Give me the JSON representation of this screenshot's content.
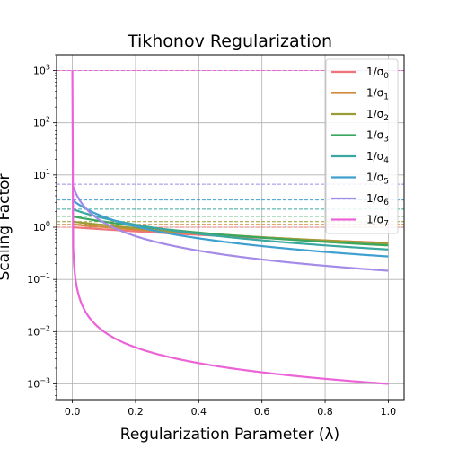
{
  "chart_data": {
    "type": "line",
    "title": "Tikhonov Regularization",
    "xlabel": "Regularization Parameter (λ)",
    "ylabel": "Scaling Factor",
    "xlim": [
      -0.05,
      1.05
    ],
    "ylim": [
      0.0005,
      2000
    ],
    "yscale": "log",
    "grid": true,
    "legend_position": "top-right",
    "x_ticks": [
      0.0,
      0.2,
      0.4,
      0.6,
      0.8,
      1.0
    ],
    "x_tick_labels": [
      "0.0",
      "0.2",
      "0.4",
      "0.6",
      "0.8",
      "1.0"
    ],
    "y_ticks": [
      0.001,
      0.01,
      0.1,
      1,
      10,
      100,
      1000
    ],
    "y_tick_labels": [
      {
        "base": "10",
        "exp": "−3"
      },
      {
        "base": "10",
        "exp": "−2"
      },
      {
        "base": "10",
        "exp": "−1"
      },
      {
        "base": "10",
        "exp": "0"
      },
      {
        "base": "10",
        "exp": "1"
      },
      {
        "base": "10",
        "exp": "2"
      },
      {
        "base": "10",
        "exp": "3"
      }
    ],
    "lambda_range": [
      0.0,
      1.0
    ],
    "series": [
      {
        "name": "1/σ0",
        "label_main": "1/σ",
        "label_sub": "0",
        "sigma": 1.0,
        "color": "#f0747a"
      },
      {
        "name": "1/σ1",
        "label_main": "1/σ",
        "label_sub": "1",
        "sigma": 0.88,
        "color": "#d18a3a"
      },
      {
        "name": "1/σ2",
        "label_main": "1/σ",
        "label_sub": "2",
        "sigma": 0.78,
        "color": "#9a9d35"
      },
      {
        "name": "1/σ3",
        "label_main": "1/σ",
        "label_sub": "3",
        "sigma": 0.62,
        "color": "#3aa65f"
      },
      {
        "name": "1/σ4",
        "label_main": "1/σ",
        "label_sub": "4",
        "sigma": 0.45,
        "color": "#3aa8a0"
      },
      {
        "name": "1/σ5",
        "label_main": "1/σ",
        "label_sub": "5",
        "sigma": 0.3,
        "color": "#3fa0d0"
      },
      {
        "name": "1/σ6",
        "label_main": "1/σ",
        "label_sub": "6",
        "sigma": 0.15,
        "color": "#a48be8"
      },
      {
        "name": "1/σ7",
        "label_main": "1/σ",
        "label_sub": "7",
        "sigma": 0.001,
        "color": "#ec63d8"
      }
    ]
  }
}
